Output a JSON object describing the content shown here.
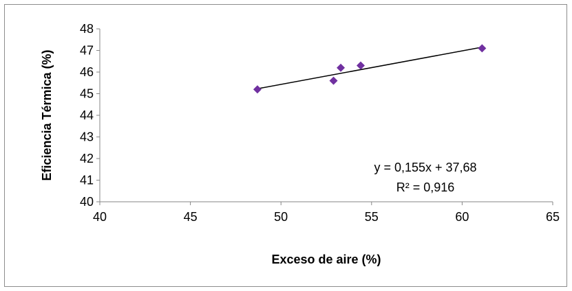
{
  "chart_data": {
    "type": "scatter",
    "title": "",
    "xlabel": "Exceso de aire (%)",
    "ylabel": "Eficiencia Térmica (%)",
    "xlim": [
      40,
      65
    ],
    "ylim": [
      40,
      48
    ],
    "xticks": [
      "40",
      "45",
      "50",
      "55",
      "60",
      "65"
    ],
    "yticks": [
      "40",
      "41",
      "42",
      "43",
      "44",
      "45",
      "46",
      "47",
      "48"
    ],
    "grid": false,
    "legend": "none",
    "series": [
      {
        "marker": "diamond",
        "color": "#7030A0",
        "points": [
          {
            "x": 48.7,
            "y": 45.2
          },
          {
            "x": 52.9,
            "y": 45.6
          },
          {
            "x": 53.3,
            "y": 46.2
          },
          {
            "x": 54.4,
            "y": 46.3
          },
          {
            "x": 61.1,
            "y": 47.1
          }
        ]
      }
    ],
    "trendline": {
      "type": "linear",
      "slope": 0.155,
      "intercept": 37.68,
      "x_range": [
        48.7,
        61.1
      ],
      "color": "#000000",
      "equation": "y = 0,155x + 37,68",
      "r_squared": "R² = 0,916"
    }
  }
}
